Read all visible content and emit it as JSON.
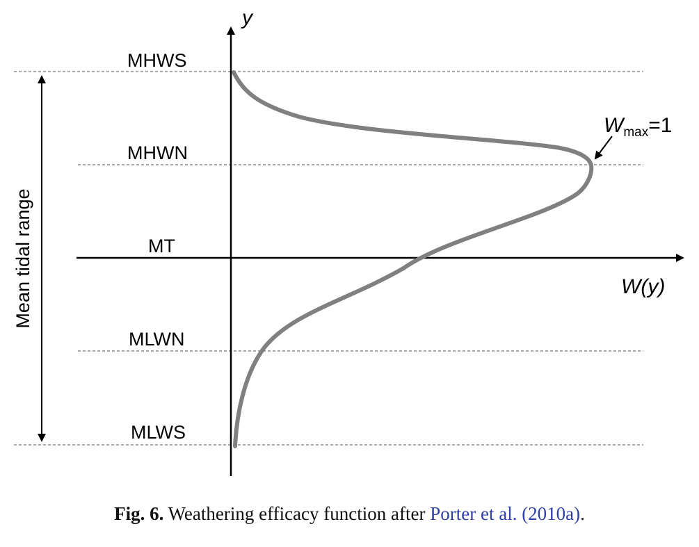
{
  "diagram": {
    "axes": {
      "y_label": "y",
      "x_label_var": "W",
      "x_label_arg": "(y)"
    },
    "levels": [
      {
        "label": "MHWS"
      },
      {
        "label": "MHWN"
      },
      {
        "label": "MT"
      },
      {
        "label": "MLWN"
      },
      {
        "label": "MLWS"
      }
    ],
    "range_label": "Mean tidal range",
    "peak_annotation": {
      "symbol": "W",
      "subscript": "max",
      "suffix": "=1"
    },
    "colors": {
      "curve": "#808080",
      "axes": "#000000",
      "guides": "#888888",
      "reference_link": "#2f3fa8"
    }
  },
  "caption": {
    "label": "Fig. 6.",
    "text": " Weathering efficacy function after ",
    "reference": "Porter et al. (2010a)",
    "end": "."
  }
}
